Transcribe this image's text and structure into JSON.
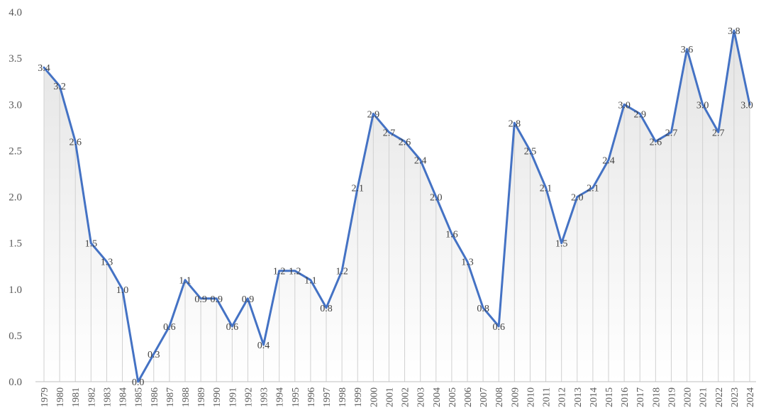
{
  "chart_data": {
    "type": "area",
    "title": "",
    "xlabel": "",
    "ylabel": "",
    "ylim": [
      0.0,
      4.0
    ],
    "yticks": [
      "0.0",
      "0.5",
      "1.0",
      "1.5",
      "2.0",
      "2.5",
      "3.0",
      "3.5",
      "4.0"
    ],
    "line_color": "#4472C4",
    "categories": [
      "1979",
      "1980",
      "1981",
      "1982",
      "1983",
      "1984",
      "1985",
      "1986",
      "1987",
      "1988",
      "1989",
      "1990",
      "1991",
      "1992",
      "1993",
      "1994",
      "1995",
      "1996",
      "1997",
      "1998",
      "1999",
      "2000",
      "2001",
      "2002",
      "2003",
      "2004",
      "2005",
      "2006",
      "2007",
      "2008",
      "2009",
      "2010",
      "2011",
      "2012",
      "2013",
      "2014",
      "2015",
      "2016",
      "2017",
      "2018",
      "2019",
      "2020",
      "2021",
      "2022",
      "2023",
      "2024"
    ],
    "values": [
      3.4,
      3.2,
      2.6,
      1.5,
      1.3,
      1.0,
      0.0,
      0.3,
      0.6,
      1.1,
      0.9,
      0.9,
      0.6,
      0.9,
      0.4,
      1.2,
      1.2,
      1.1,
      0.8,
      1.2,
      2.1,
      2.9,
      2.7,
      2.6,
      2.4,
      2.0,
      1.6,
      1.3,
      0.8,
      0.6,
      2.8,
      2.5,
      2.1,
      1.5,
      2.0,
      2.1,
      2.4,
      3.0,
      2.9,
      2.6,
      2.7,
      3.6,
      3.0,
      2.7,
      3.8,
      3.0
    ],
    "labels": [
      "3.4",
      "3.2",
      "2.6",
      "1.5",
      "1.3",
      "1.0",
      "0.0",
      "0.3",
      "0.6",
      "1.1",
      "0.9",
      "0.9",
      "0.6",
      "0.9",
      "0.4",
      "1.2",
      "1.2",
      "1.1",
      "0.8",
      "1.2",
      "2.1",
      "2.9",
      "2.7",
      "2.6",
      "2.4",
      "2.0",
      "1.6",
      "1.3",
      "0.8",
      "0.6",
      "2.8",
      "2.5",
      "2.1",
      "1.5",
      "2.0",
      "2.1",
      "2.4",
      "3.0",
      "2.9",
      "2.6",
      "2.7",
      "3.6",
      "3.0",
      "2.7",
      "3.8",
      "3.0"
    ]
  }
}
